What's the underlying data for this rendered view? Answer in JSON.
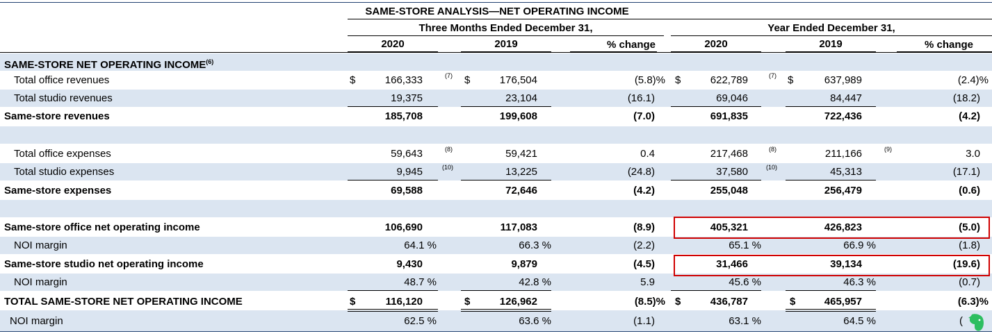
{
  "title": "SAME-STORE ANALYSIS—NET OPERATING INCOME",
  "headers": {
    "group1": "Three Months Ended December 31,",
    "group2": "Year Ended December 31,",
    "col1": "2020",
    "col2": "2019",
    "col3": "% change",
    "col4": "2020",
    "col5": "2019",
    "col6": "% change"
  },
  "section_label": "SAME-STORE NET OPERATING INCOME",
  "section_note": "(6)",
  "currency": "$",
  "rows": {
    "office_rev": {
      "label": "Total office revenues",
      "v1": "166,333",
      "n1": "(7)",
      "v2": "176,504",
      "p1": "(5.8)%",
      "v4": "622,789",
      "n4": "(7)",
      "v5": "637,989",
      "p2": "(2.4)%"
    },
    "studio_rev": {
      "label": "Total studio revenues",
      "v1": "19,375",
      "v2": "23,104",
      "p1": "(16.1)",
      "v4": "69,046",
      "v5": "84,447",
      "p2": "(18.2)"
    },
    "ss_rev": {
      "label": "Same-store revenues",
      "v1": "185,708",
      "v2": "199,608",
      "p1": "(7.0)",
      "v4": "691,835",
      "v5": "722,436",
      "p2": "(4.2)"
    },
    "office_exp": {
      "label": "Total office expenses",
      "v1": "59,643",
      "n1": "(8)",
      "v2": "59,421",
      "p1": "0.4",
      "v4": "217,468",
      "n4": "(8)",
      "v5": "211,166",
      "n5": "(9)",
      "p2": "3.0"
    },
    "studio_exp": {
      "label": "Total studio expenses",
      "v1": "9,945",
      "n1": "(10)",
      "v2": "13,225",
      "p1": "(24.8)",
      "v4": "37,580",
      "n4": "(10)",
      "v5": "45,313",
      "p2": "(17.1)"
    },
    "ss_exp": {
      "label": "Same-store expenses",
      "v1": "69,588",
      "v2": "72,646",
      "p1": "(4.2)",
      "v4": "255,048",
      "v5": "256,479",
      "p2": "(0.6)"
    },
    "office_noi": {
      "label": "Same-store office net operating income",
      "v1": "106,690",
      "v2": "117,083",
      "p1": "(8.9)",
      "v4": "405,321",
      "v5": "426,823",
      "p2": "(5.0)"
    },
    "office_m": {
      "label": "NOI margin",
      "v1": "64.1 %",
      "v2": "66.3 %",
      "p1": "(2.2)",
      "v4": "65.1 %",
      "v5": "66.9 %",
      "p2": "(1.8)"
    },
    "studio_noi": {
      "label": "Same-store studio net operating income",
      "v1": "9,430",
      "v2": "9,879",
      "p1": "(4.5)",
      "v4": "31,466",
      "v5": "39,134",
      "p2": "(19.6)"
    },
    "studio_m": {
      "label": "NOI margin",
      "v1": "48.7 %",
      "v2": "42.8 %",
      "p1": "5.9",
      "v4": "45.6 %",
      "v5": "46.3 %",
      "p2": "(0.7)"
    },
    "total_noi": {
      "label": "TOTAL SAME-STORE NET OPERATING INCOME",
      "v1": "116,120",
      "v2": "126,962",
      "p1": "(8.5)%",
      "v4": "436,787",
      "v5": "465,957",
      "p2": "(6.3)%"
    },
    "total_m": {
      "label": "NOI margin",
      "v1": "62.5 %",
      "v2": "63.6 %",
      "p1": "(1.1)",
      "v4": "63.1 %",
      "v5": "64.5 %",
      "p2": "("
    }
  }
}
